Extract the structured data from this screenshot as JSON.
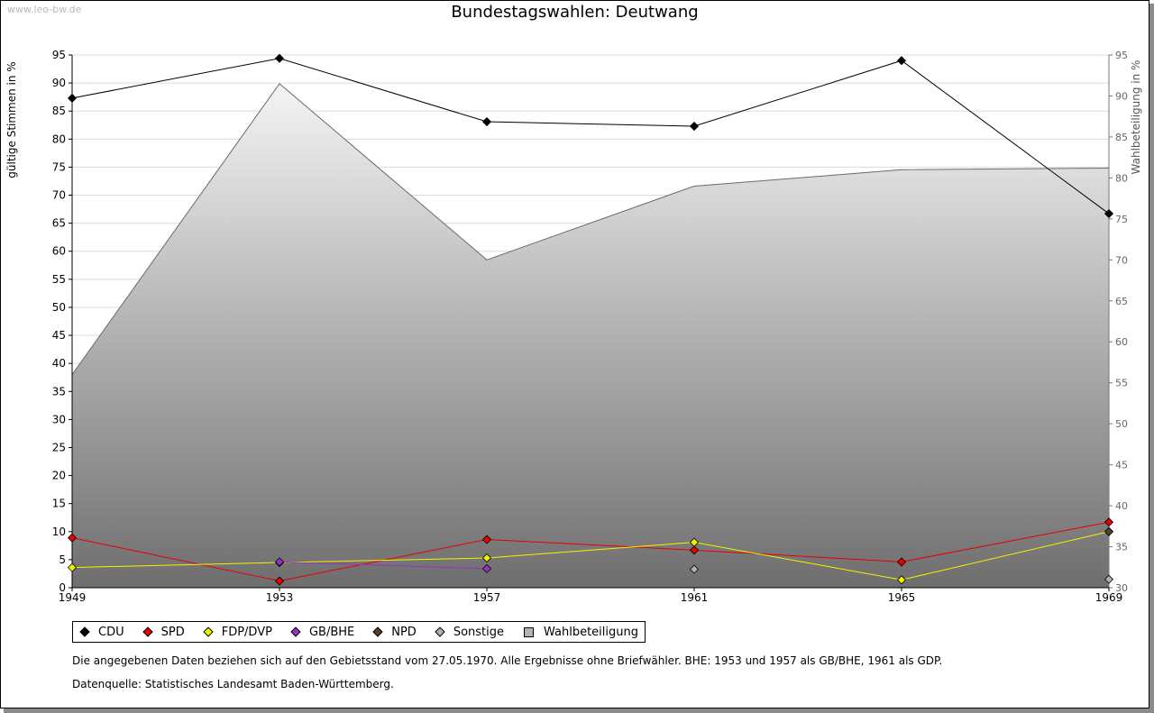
{
  "watermark": "www.leo-bw.de",
  "footnote": "Die angegebenen Daten beziehen sich auf den Gebietsstand vom 27.05.1970. Alle Ergebnisse ohne Briefwähler. BHE: 1953 und 1957 als GB/BHE, 1961 als GDP.",
  "source": "Datenquelle: Statistisches Landesamt Baden-Württemberg.",
  "chart_data": {
    "type": "line",
    "title": "Bundestagswahlen: Deutwang",
    "ylabel": "gültige Stimmen in %",
    "y2label": "Wahlbeteiligung in %",
    "x": [
      "1949",
      "1953",
      "1957",
      "1961",
      "1965",
      "1969"
    ],
    "ylim": [
      0,
      95
    ],
    "yticks": [
      0,
      5,
      10,
      15,
      20,
      25,
      30,
      35,
      40,
      45,
      50,
      55,
      60,
      65,
      70,
      75,
      80,
      85,
      90,
      95
    ],
    "y2lim": [
      30,
      95
    ],
    "y2ticks": [
      30,
      35,
      40,
      45,
      50,
      55,
      60,
      65,
      70,
      75,
      80,
      85,
      90,
      95
    ],
    "grid": true,
    "legend_position": "bottom",
    "series": [
      {
        "name": "CDU",
        "color": "#000000",
        "values": [
          87.3,
          94.4,
          83.1,
          82.3,
          94.0,
          66.7
        ]
      },
      {
        "name": "SPD",
        "color": "#e60000",
        "values": [
          8.9,
          1.2,
          8.6,
          6.7,
          4.6,
          11.7
        ]
      },
      {
        "name": "FDP/DVP",
        "color": "#f2f200",
        "values": [
          3.6,
          4.5,
          5.3,
          8.1,
          1.4,
          10.0
        ]
      },
      {
        "name": "GB/BHE",
        "color": "#9b30c8",
        "values": [
          null,
          4.6,
          3.4,
          null,
          null,
          null
        ]
      },
      {
        "name": "NPD",
        "color": "#5a4030",
        "values": [
          null,
          null,
          null,
          null,
          null,
          10.0
        ]
      },
      {
        "name": "Sonstige",
        "color": "#b0b0b0",
        "values": [
          null,
          null,
          null,
          3.3,
          null,
          1.5
        ]
      }
    ],
    "area_series": {
      "name": "Wahlbeteiligung",
      "axis": "right",
      "values": [
        56.0,
        91.5,
        70.0,
        79.0,
        81.0,
        81.2
      ]
    }
  }
}
